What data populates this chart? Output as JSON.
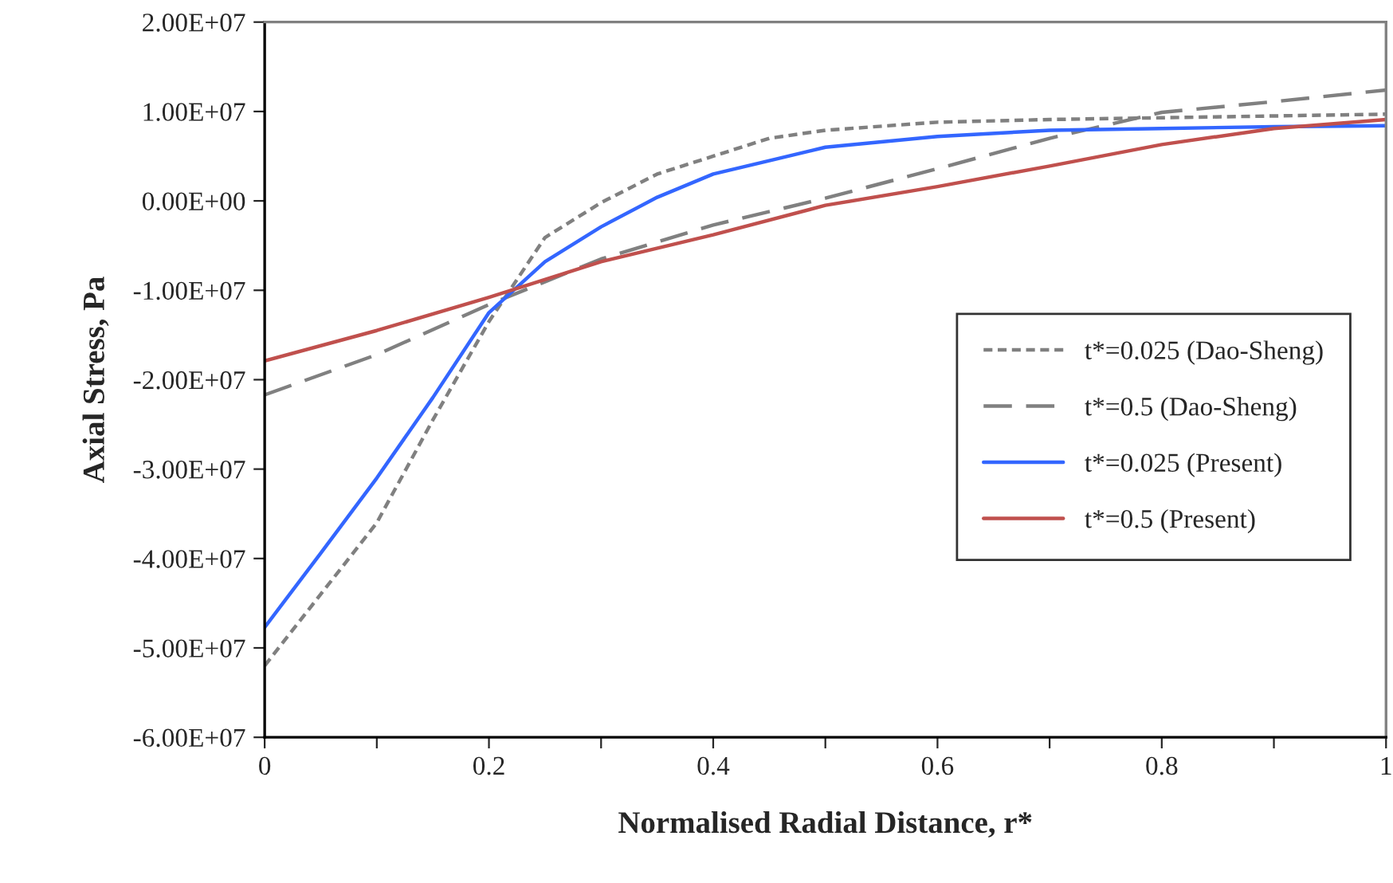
{
  "chart_data": {
    "type": "line",
    "xlabel": "Normalised Radial Distance, r*",
    "ylabel": "Axial Stress, Pa",
    "xlim": [
      0,
      1
    ],
    "xticks": [
      0,
      {
        "value": 0.1,
        "label": null
      },
      0.2,
      {
        "value": 0.3,
        "label": null
      },
      0.4,
      {
        "value": 0.5,
        "label": null
      },
      0.6,
      {
        "value": 0.7,
        "label": null
      },
      0.8,
      {
        "value": 0.9,
        "label": null
      },
      1
    ],
    "ylim": [
      -60000000.0,
      20000000.0
    ],
    "yticks": [
      {
        "value": -60000000.0,
        "label": "-6.00E+07"
      },
      {
        "value": -50000000.0,
        "label": "-5.00E+07"
      },
      {
        "value": -40000000.0,
        "label": "-4.00E+07"
      },
      {
        "value": -30000000.0,
        "label": "-3.00E+07"
      },
      {
        "value": -20000000.0,
        "label": "-2.00E+07"
      },
      {
        "value": -10000000.0,
        "label": "-1.00E+07"
      },
      {
        "value": 0,
        "label": "0.00E+00"
      },
      {
        "value": 10000000.0,
        "label": "1.00E+07"
      },
      {
        "value": 20000000.0,
        "label": "2.00E+07"
      }
    ],
    "grid": false,
    "legend": "right",
    "marker": "none",
    "series": [
      {
        "name": "t*=0.025 (Dao-Sheng)",
        "color": "#808080",
        "line_style": "dotted",
        "x": [
          0,
          0.05,
          0.1,
          0.15,
          0.2,
          0.25,
          0.3,
          0.35,
          0.4,
          0.45,
          0.5,
          0.6,
          0.7,
          0.8,
          0.9,
          1
        ],
        "values": [
          -52000000.0,
          -44000000.0,
          -36000000.0,
          -24500000.0,
          -13500000.0,
          -4100000.0,
          -200000.0,
          3000000.0,
          5000000.0,
          7000000.0,
          7900000.0,
          8800000.0,
          9100000.0,
          9300000.0,
          9500000.0,
          9700000.0
        ]
      },
      {
        "name": "t*=0.5 (Dao-Sheng)",
        "color": "#808080",
        "line_style": "dashed",
        "x": [
          0,
          0.1,
          0.2,
          0.3,
          0.4,
          0.5,
          0.6,
          0.7,
          0.8,
          0.9,
          1
        ],
        "values": [
          -21700000.0,
          -17200000.0,
          -11600000.0,
          -6500000.0,
          -2700000.0,
          300000.0,
          3600000.0,
          7000000.0,
          9900000.0,
          11100000.0,
          12400000.0
        ]
      },
      {
        "name": "t*=0.025 (Present)",
        "color": "#3366ff",
        "line_style": "solid",
        "x": [
          0,
          0.05,
          0.1,
          0.15,
          0.2,
          0.25,
          0.3,
          0.35,
          0.4,
          0.45,
          0.5,
          0.6,
          0.7,
          0.8,
          0.9,
          1
        ],
        "values": [
          -47700000.0,
          -39400000.0,
          -31000000.0,
          -22000000.0,
          -12500000.0,
          -6800000.0,
          -2900000.0,
          400000.0,
          3000000.0,
          4500000.0,
          6000000.0,
          7200000.0,
          7900000.0,
          8100000.0,
          8300000.0,
          8400000.0
        ]
      },
      {
        "name": "t*=0.5 (Present)",
        "color": "#c0504d",
        "line_style": "solid",
        "x": [
          0,
          0.1,
          0.2,
          0.3,
          0.4,
          0.5,
          0.6,
          0.7,
          0.8,
          0.9,
          1
        ],
        "values": [
          -17900000.0,
          -14500000.0,
          -10800000.0,
          -6800000.0,
          -3800000.0,
          -500000.0,
          1600000.0,
          3900000.0,
          6300000.0,
          8100000.0,
          9100000.0
        ]
      }
    ]
  }
}
